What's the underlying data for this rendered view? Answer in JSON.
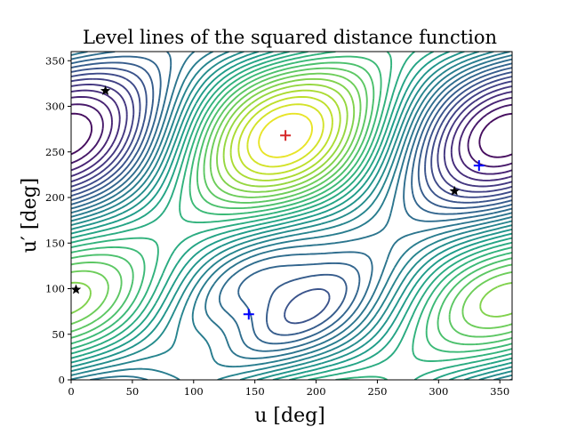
{
  "chart_data": {
    "type": "contour",
    "title": "Level lines of the squared distance function",
    "xlabel": "u [deg]",
    "ylabel": "u′ [deg]",
    "xlim": [
      0,
      360
    ],
    "ylim": [
      0,
      360
    ],
    "xticks": [
      "0",
      "50",
      "100",
      "150",
      "200",
      "250",
      "300",
      "350"
    ],
    "yticks": [
      "0",
      "50",
      "100",
      "150",
      "200",
      "250",
      "300",
      "350"
    ],
    "xtick_values": [
      0,
      50,
      100,
      150,
      200,
      250,
      300,
      350
    ],
    "ytick_values": [
      0,
      50,
      100,
      150,
      200,
      250,
      300,
      350
    ],
    "grid": false,
    "colormap": "viridis",
    "contour_levels": 30,
    "maximum": {
      "x": 175,
      "y": 268,
      "color": "#d62728"
    },
    "saddles": [
      {
        "x": 145,
        "y": 72,
        "color": "#0000ff"
      },
      {
        "x": 333,
        "y": 235,
        "color": "#0000ff"
      }
    ],
    "minima": [
      {
        "x": 28,
        "y": 317,
        "color": "#000000"
      },
      {
        "x": 4,
        "y": 99,
        "color": "#000000"
      },
      {
        "x": 313,
        "y": 207,
        "color": "#000000"
      }
    ]
  }
}
